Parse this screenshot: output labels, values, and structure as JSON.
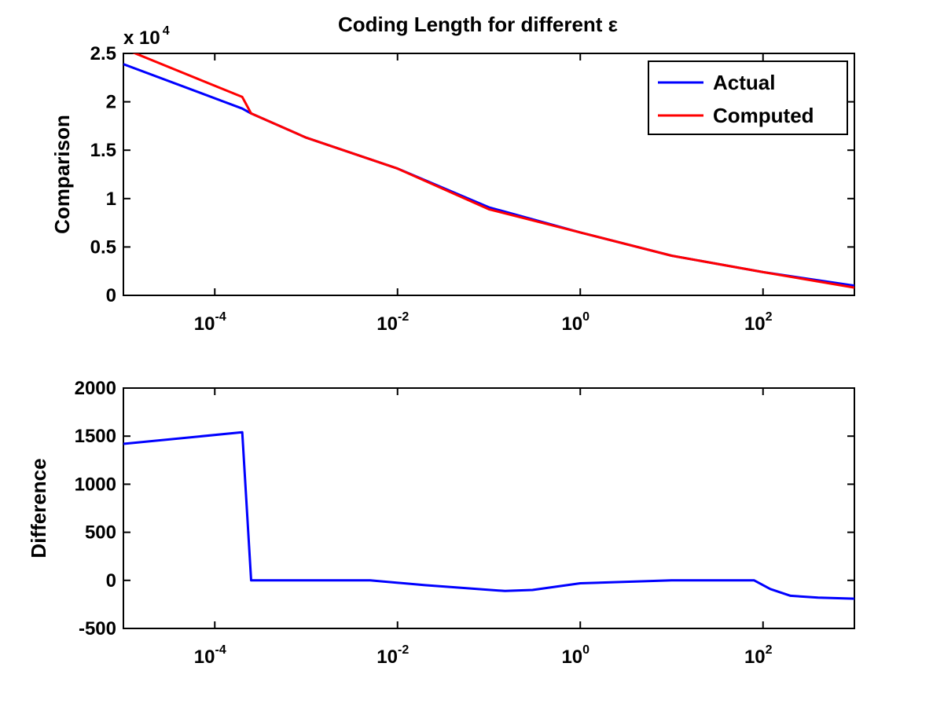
{
  "title": "Coding Length for different ε",
  "chart_data": [
    {
      "type": "line",
      "ylabel": "Comparison",
      "xscale": "log",
      "xlim": [
        1e-05,
        1000
      ],
      "ylim": [
        0,
        25000
      ],
      "y_multiplier_label": "x 10",
      "y_multiplier_exp": "4",
      "yticks": [
        0,
        5000,
        10000,
        15000,
        20000,
        25000
      ],
      "ytick_labels": [
        "0",
        "0.5",
        "1",
        "1.5",
        "2",
        "2.5"
      ],
      "xticks": [
        0.0001,
        0.01,
        1,
        100
      ],
      "xtick_labels": [
        {
          "base": "10",
          "exp": "-4"
        },
        {
          "base": "10",
          "exp": "-2"
        },
        {
          "base": "10",
          "exp": "0"
        },
        {
          "base": "10",
          "exp": "2"
        }
      ],
      "legend": {
        "location": "top-right"
      },
      "series": [
        {
          "name": "Actual",
          "color": "#0000ff",
          "x": [
            1e-05,
            0.0002,
            0.00025,
            0.001,
            0.01,
            0.1,
            1,
            10,
            100,
            1000
          ],
          "y": [
            23900,
            19300,
            18800,
            16300,
            13100,
            9100,
            6500,
            4100,
            2400,
            1000
          ]
        },
        {
          "name": "Computed",
          "color": "#ff0000",
          "x": [
            1e-05,
            0.0002,
            0.00025,
            0.001,
            0.01,
            0.1,
            1,
            10,
            100,
            1000
          ],
          "y": [
            25500,
            20500,
            18800,
            16300,
            13100,
            8900,
            6500,
            4100,
            2400,
            800
          ]
        }
      ]
    },
    {
      "type": "line",
      "ylabel": "Difference",
      "xscale": "log",
      "xlim": [
        1e-05,
        1000
      ],
      "ylim": [
        -500,
        2000
      ],
      "yticks": [
        -500,
        0,
        500,
        1000,
        1500,
        2000
      ],
      "ytick_labels": [
        "-500",
        "0",
        "500",
        "1000",
        "1500",
        "2000"
      ],
      "xticks": [
        0.0001,
        0.01,
        1,
        100
      ],
      "xtick_labels": [
        {
          "base": "10",
          "exp": "-4"
        },
        {
          "base": "10",
          "exp": "-2"
        },
        {
          "base": "10",
          "exp": "0"
        },
        {
          "base": "10",
          "exp": "2"
        }
      ],
      "series": [
        {
          "color": "#0000ff",
          "x": [
            1e-05,
            0.0002,
            0.00025,
            0.005,
            0.02,
            0.15,
            0.3,
            1,
            10,
            80,
            120,
            200,
            400,
            1000
          ],
          "y": [
            1420,
            1540,
            0,
            0,
            -50,
            -110,
            -100,
            -30,
            0,
            0,
            -90,
            -160,
            -180,
            -190
          ]
        }
      ]
    }
  ]
}
